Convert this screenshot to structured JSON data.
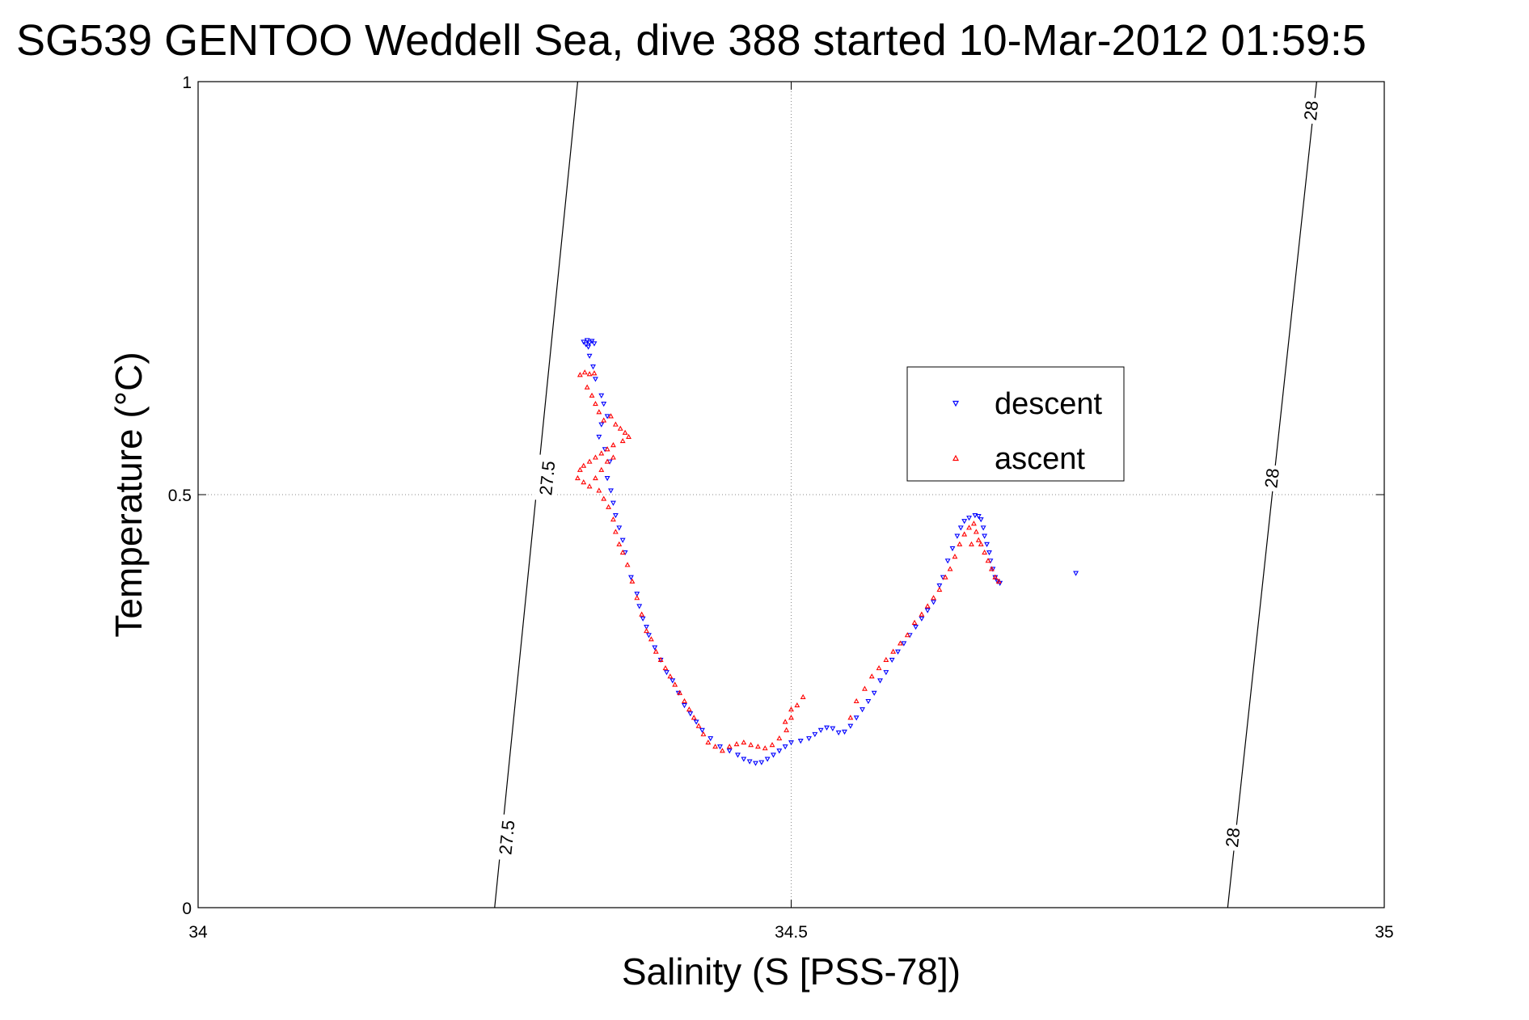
{
  "chart_data": {
    "type": "scatter",
    "title": "SG539 GENTOO Weddell Sea, dive 388 started 10-Mar-2012 01:59:5",
    "xlabel": "Salinity (S [PSS-78])",
    "ylabel": "Temperature (°C)",
    "xlim": [
      34,
      35
    ],
    "ylim": [
      0,
      1
    ],
    "xticks": [
      34,
      34.5,
      35
    ],
    "xtick_labels": [
      "34",
      "34.5",
      "35"
    ],
    "yticks": [
      0,
      0.5,
      1
    ],
    "ytick_labels": [
      "0",
      "0.5",
      "1"
    ],
    "grid": true,
    "legend": {
      "position": "center-right",
      "entries": [
        "descent",
        "ascent"
      ]
    },
    "density_contours": [
      {
        "label": "27.5",
        "points": [
          [
            34.25,
            0
          ],
          [
            34.32,
            1
          ]
        ]
      },
      {
        "label": "28",
        "points": [
          [
            34.868,
            0
          ],
          [
            34.943,
            1
          ]
        ]
      }
    ],
    "contour_label_text": [
      {
        "contour": 0,
        "text": "27.5",
        "at": [
          34.294,
          0.52
        ]
      },
      {
        "contour": 0,
        "text": "27.5",
        "at": [
          34.26,
          0.085
        ]
      },
      {
        "contour": 1,
        "text": "28",
        "at": [
          34.905,
          0.52
        ]
      },
      {
        "contour": 1,
        "text": "28",
        "at": [
          34.872,
          0.085
        ]
      },
      {
        "contour": 1,
        "text": "28",
        "at": [
          34.938,
          0.965
        ]
      }
    ],
    "series": [
      {
        "name": "descent",
        "color": "#0000ff",
        "marker": "triangle-down",
        "points": [
          [
            34.325,
            0.685
          ],
          [
            34.328,
            0.687
          ],
          [
            34.33,
            0.684
          ],
          [
            34.327,
            0.682
          ],
          [
            34.332,
            0.686
          ],
          [
            34.334,
            0.683
          ],
          [
            34.329,
            0.679
          ],
          [
            34.33,
            0.668
          ],
          [
            34.333,
            0.655
          ],
          [
            34.335,
            0.64
          ],
          [
            34.34,
            0.62
          ],
          [
            34.342,
            0.61
          ],
          [
            34.345,
            0.595
          ],
          [
            34.34,
            0.585
          ],
          [
            34.338,
            0.57
          ],
          [
            34.343,
            0.555
          ],
          [
            34.347,
            0.54
          ],
          [
            34.345,
            0.52
          ],
          [
            34.348,
            0.505
          ],
          [
            34.35,
            0.49
          ],
          [
            34.352,
            0.475
          ],
          [
            34.355,
            0.46
          ],
          [
            34.358,
            0.445
          ],
          [
            34.36,
            0.43
          ],
          [
            34.365,
            0.4
          ],
          [
            34.37,
            0.38
          ],
          [
            34.372,
            0.365
          ],
          [
            34.375,
            0.35
          ],
          [
            34.378,
            0.34
          ],
          [
            34.38,
            0.33
          ],
          [
            34.385,
            0.315
          ],
          [
            34.39,
            0.3
          ],
          [
            34.395,
            0.285
          ],
          [
            34.4,
            0.275
          ],
          [
            34.405,
            0.26
          ],
          [
            34.41,
            0.245
          ],
          [
            34.415,
            0.235
          ],
          [
            34.42,
            0.225
          ],
          [
            34.425,
            0.215
          ],
          [
            34.432,
            0.205
          ],
          [
            34.44,
            0.195
          ],
          [
            34.448,
            0.19
          ],
          [
            34.455,
            0.185
          ],
          [
            34.46,
            0.18
          ],
          [
            34.465,
            0.177
          ],
          [
            34.47,
            0.175
          ],
          [
            34.475,
            0.176
          ],
          [
            34.48,
            0.18
          ],
          [
            34.485,
            0.185
          ],
          [
            34.49,
            0.19
          ],
          [
            34.495,
            0.195
          ],
          [
            34.5,
            0.2
          ],
          [
            34.508,
            0.202
          ],
          [
            34.515,
            0.205
          ],
          [
            34.52,
            0.21
          ],
          [
            34.525,
            0.215
          ],
          [
            34.53,
            0.218
          ],
          [
            34.535,
            0.217
          ],
          [
            34.54,
            0.212
          ],
          [
            34.545,
            0.213
          ],
          [
            34.55,
            0.22
          ],
          [
            34.555,
            0.23
          ],
          [
            34.56,
            0.24
          ],
          [
            34.565,
            0.25
          ],
          [
            34.57,
            0.26
          ],
          [
            34.575,
            0.275
          ],
          [
            34.58,
            0.285
          ],
          [
            34.585,
            0.3
          ],
          [
            34.59,
            0.31
          ],
          [
            34.595,
            0.32
          ],
          [
            34.6,
            0.33
          ],
          [
            34.605,
            0.34
          ],
          [
            34.61,
            0.35
          ],
          [
            34.615,
            0.36
          ],
          [
            34.62,
            0.37
          ],
          [
            34.625,
            0.39
          ],
          [
            34.628,
            0.4
          ],
          [
            34.632,
            0.42
          ],
          [
            34.636,
            0.435
          ],
          [
            34.64,
            0.45
          ],
          [
            34.643,
            0.46
          ],
          [
            34.646,
            0.468
          ],
          [
            34.65,
            0.472
          ],
          [
            34.655,
            0.475
          ],
          [
            34.658,
            0.474
          ],
          [
            34.66,
            0.47
          ],
          [
            34.662,
            0.46
          ],
          [
            34.663,
            0.45
          ],
          [
            34.665,
            0.44
          ],
          [
            34.667,
            0.43
          ],
          [
            34.668,
            0.42
          ],
          [
            34.67,
            0.41
          ],
          [
            34.672,
            0.4
          ],
          [
            34.674,
            0.395
          ],
          [
            34.676,
            0.393
          ],
          [
            34.74,
            0.405
          ]
        ]
      },
      {
        "name": "ascent",
        "color": "#ff0000",
        "marker": "triangle-up",
        "points": [
          [
            34.322,
            0.645
          ],
          [
            34.326,
            0.648
          ],
          [
            34.33,
            0.646
          ],
          [
            34.334,
            0.647
          ],
          [
            34.328,
            0.63
          ],
          [
            34.332,
            0.62
          ],
          [
            34.335,
            0.61
          ],
          [
            34.338,
            0.6
          ],
          [
            34.342,
            0.59
          ],
          [
            34.348,
            0.595
          ],
          [
            34.352,
            0.585
          ],
          [
            34.356,
            0.58
          ],
          [
            34.36,
            0.575
          ],
          [
            34.363,
            0.57
          ],
          [
            34.358,
            0.565
          ],
          [
            34.35,
            0.56
          ],
          [
            34.345,
            0.555
          ],
          [
            34.34,
            0.55
          ],
          [
            34.335,
            0.545
          ],
          [
            34.33,
            0.54
          ],
          [
            34.325,
            0.535
          ],
          [
            34.322,
            0.53
          ],
          [
            34.32,
            0.52
          ],
          [
            34.325,
            0.515
          ],
          [
            34.33,
            0.51
          ],
          [
            34.335,
            0.52
          ],
          [
            34.34,
            0.53
          ],
          [
            34.345,
            0.54
          ],
          [
            34.35,
            0.545
          ],
          [
            34.338,
            0.505
          ],
          [
            34.342,
            0.495
          ],
          [
            34.346,
            0.485
          ],
          [
            34.35,
            0.47
          ],
          [
            34.352,
            0.455
          ],
          [
            34.355,
            0.44
          ],
          [
            34.358,
            0.43
          ],
          [
            34.362,
            0.415
          ],
          [
            34.366,
            0.395
          ],
          [
            34.37,
            0.375
          ],
          [
            34.374,
            0.355
          ],
          [
            34.378,
            0.335
          ],
          [
            34.382,
            0.325
          ],
          [
            34.386,
            0.31
          ],
          [
            34.39,
            0.3
          ],
          [
            34.394,
            0.29
          ],
          [
            34.398,
            0.28
          ],
          [
            34.402,
            0.27
          ],
          [
            34.406,
            0.26
          ],
          [
            34.41,
            0.25
          ],
          [
            34.414,
            0.24
          ],
          [
            34.418,
            0.23
          ],
          [
            34.422,
            0.22
          ],
          [
            34.426,
            0.21
          ],
          [
            34.43,
            0.2
          ],
          [
            34.436,
            0.195
          ],
          [
            34.442,
            0.19
          ],
          [
            34.448,
            0.195
          ],
          [
            34.454,
            0.198
          ],
          [
            34.46,
            0.2
          ],
          [
            34.466,
            0.197
          ],
          [
            34.472,
            0.195
          ],
          [
            34.478,
            0.193
          ],
          [
            34.484,
            0.197
          ],
          [
            34.49,
            0.205
          ],
          [
            34.496,
            0.215
          ],
          [
            34.5,
            0.23
          ],
          [
            34.505,
            0.245
          ],
          [
            34.51,
            0.255
          ],
          [
            34.5,
            0.24
          ],
          [
            34.495,
            0.225
          ],
          [
            34.55,
            0.23
          ],
          [
            34.555,
            0.25
          ],
          [
            34.562,
            0.265
          ],
          [
            34.568,
            0.28
          ],
          [
            34.574,
            0.29
          ],
          [
            34.58,
            0.3
          ],
          [
            34.586,
            0.31
          ],
          [
            34.592,
            0.32
          ],
          [
            34.598,
            0.33
          ],
          [
            34.604,
            0.345
          ],
          [
            34.61,
            0.355
          ],
          [
            34.615,
            0.365
          ],
          [
            34.62,
            0.375
          ],
          [
            34.625,
            0.385
          ],
          [
            34.63,
            0.4
          ],
          [
            34.634,
            0.41
          ],
          [
            34.638,
            0.425
          ],
          [
            34.642,
            0.44
          ],
          [
            34.646,
            0.452
          ],
          [
            34.65,
            0.46
          ],
          [
            34.654,
            0.465
          ],
          [
            34.656,
            0.455
          ],
          [
            34.658,
            0.445
          ],
          [
            34.66,
            0.44
          ],
          [
            34.663,
            0.43
          ],
          [
            34.666,
            0.42
          ],
          [
            34.669,
            0.41
          ],
          [
            34.672,
            0.4
          ],
          [
            34.675,
            0.395
          ],
          [
            34.652,
            0.44
          ]
        ]
      }
    ]
  }
}
